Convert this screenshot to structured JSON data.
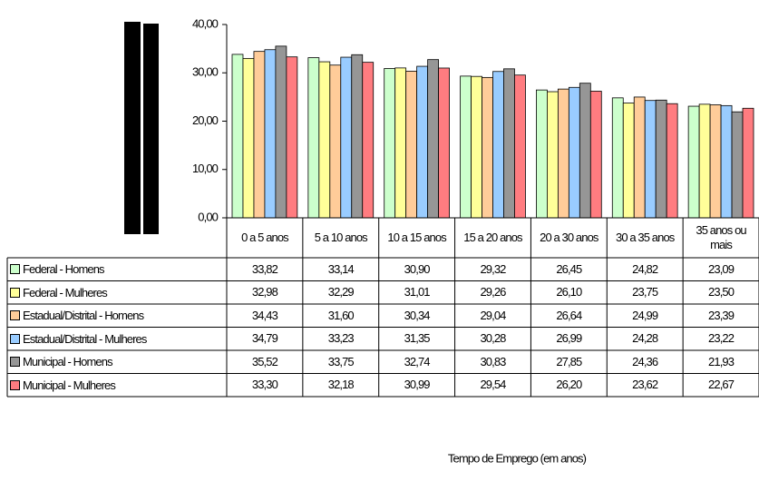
{
  "chart_data": {
    "type": "bar",
    "categories": [
      "0 a 5 anos",
      "5 a 10 anos",
      "10 a 15 anos",
      "15 a 20 anos",
      "20 a 30 anos",
      "30 a 35 anos",
      "35 anos ou mais"
    ],
    "series": [
      {
        "name": "Federal - Homens",
        "color": "#ccffcc",
        "values": [
          33.82,
          33.14,
          30.9,
          29.32,
          26.45,
          24.82,
          23.09
        ],
        "value_labels": [
          "33,82",
          "33,14",
          "30,90",
          "29,32",
          "26,45",
          "24,82",
          "23,09"
        ]
      },
      {
        "name": "Federal - Mulheres",
        "color": "#ffff99",
        "values": [
          32.98,
          32.29,
          31.01,
          29.26,
          26.1,
          23.75,
          23.5
        ],
        "value_labels": [
          "32,98",
          "32,29",
          "31,01",
          "29,26",
          "26,10",
          "23,75",
          "23,50"
        ]
      },
      {
        "name": "Estadual/Distrital - Homens",
        "color": "#ffcc99",
        "values": [
          34.43,
          31.6,
          30.34,
          29.04,
          26.64,
          24.99,
          23.39
        ],
        "value_labels": [
          "34,43",
          "31,60",
          "30,34",
          "29,04",
          "26,64",
          "24,99",
          "23,39"
        ]
      },
      {
        "name": "Estadual/Distrital - Mulheres",
        "color": "#99ccff",
        "values": [
          34.79,
          33.23,
          31.35,
          30.28,
          26.99,
          24.28,
          23.22
        ],
        "value_labels": [
          "34,79",
          "33,23",
          "31,35",
          "30,28",
          "26,99",
          "24,28",
          "23,22"
        ]
      },
      {
        "name": "Municipal - Homens",
        "color": "#969696",
        "values": [
          35.52,
          33.75,
          32.74,
          30.83,
          27.85,
          24.36,
          21.93
        ],
        "value_labels": [
          "35,52",
          "33,75",
          "32,74",
          "30,83",
          "27,85",
          "24,36",
          "21,93"
        ]
      },
      {
        "name": "Municipal - Mulheres",
        "color": "#ff7c80",
        "values": [
          33.3,
          32.18,
          30.99,
          29.54,
          26.2,
          23.62,
          22.67
        ],
        "value_labels": [
          "33,30",
          "32,18",
          "30,99",
          "29,54",
          "26,20",
          "23,62",
          "22,67"
        ]
      }
    ],
    "ylim": [
      0,
      40
    ],
    "yticks": [
      {
        "value": 0,
        "label": "0,00"
      },
      {
        "value": 10,
        "label": "10,00"
      },
      {
        "value": 20,
        "label": "20,00"
      },
      {
        "value": 30,
        "label": "30,00"
      },
      {
        "value": 40,
        "label": "40,00"
      }
    ],
    "x_label": "Tempo de Emprego (em anos)"
  }
}
